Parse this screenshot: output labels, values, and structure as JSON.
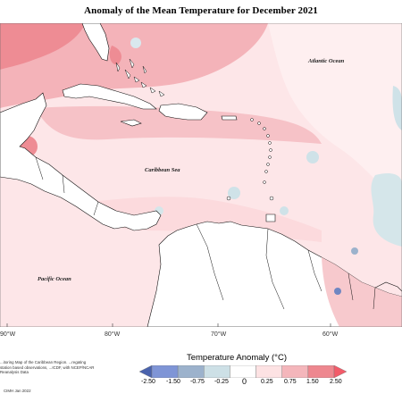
{
  "title": "Anomaly of the Mean Temperature for December 2021",
  "map_labels": {
    "atlantic": "Atlantic Ocean",
    "caribbean": "Caribbean Sea",
    "pacific": "Pacific Ocean"
  },
  "longitude_ticks": [
    "90°W",
    "80°W",
    "70°W",
    "60°W"
  ],
  "legend": {
    "title": "Temperature Anomaly (°C)",
    "labels": [
      "-2.50",
      "-1.50",
      "-0.75",
      "-0.25",
      "0",
      "0.25",
      "0.75",
      "1.50",
      "2.50"
    ],
    "colors": [
      "#4a63ad",
      "#7f95d6",
      "#9cb2cc",
      "#cde0e6",
      "#ffffff",
      "#fde2e3",
      "#f4b6bb",
      "#ee878f",
      "#f25b69"
    ]
  },
  "note": "...itoring Map of the Caribbean Region. ...regating station based observations, ...ICDF, with NCEP/NCAR Reanalysis Data",
  "credit": "CIMH  Jan 2022"
}
